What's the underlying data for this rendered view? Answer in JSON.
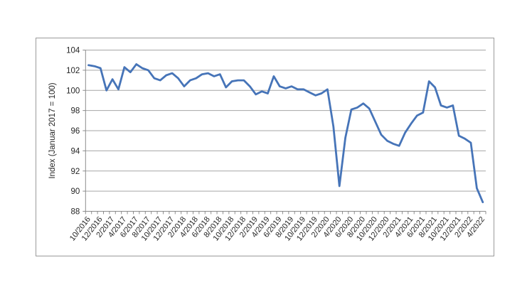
{
  "chart_data": {
    "type": "line",
    "title": "",
    "xlabel": "",
    "ylabel": "Index (Januar 2017 = 100)",
    "ylim": [
      88,
      104
    ],
    "ytick_step": 2,
    "grid": true,
    "legend": "none",
    "x_label_every": 2,
    "categories": [
      "10/2016",
      "11/2016",
      "12/2016",
      "1/2017",
      "2/2017",
      "3/2017",
      "4/2017",
      "5/2017",
      "6/2017",
      "7/2017",
      "8/2017",
      "9/2017",
      "10/2017",
      "11/2017",
      "12/2017",
      "1/2018",
      "2/2018",
      "3/2018",
      "4/2018",
      "5/2018",
      "6/2018",
      "7/2018",
      "8/2018",
      "9/2018",
      "10/2018",
      "11/2018",
      "12/2018",
      "1/2019",
      "2/2019",
      "3/2019",
      "4/2019",
      "5/2019",
      "6/2019",
      "7/2019",
      "8/2019",
      "9/2019",
      "10/2019",
      "11/2019",
      "12/2019",
      "1/2020",
      "2/2020",
      "3/2020",
      "4/2020",
      "5/2020",
      "6/2020",
      "7/2020",
      "8/2020",
      "9/2020",
      "10/2020",
      "11/2020",
      "12/2020",
      "1/2021",
      "2/2021",
      "3/2021",
      "4/2021",
      "5/2021",
      "6/2021",
      "7/2021",
      "8/2021",
      "9/2021",
      "10/2021",
      "11/2021",
      "12/2021",
      "1/2022",
      "2/2022",
      "3/2022",
      "4/2022"
    ],
    "series": [
      {
        "name": "Index",
        "values": [
          102.5,
          102.4,
          102.2,
          100.0,
          101.1,
          100.1,
          102.3,
          101.8,
          102.6,
          102.2,
          102.0,
          101.2,
          101.0,
          101.5,
          101.7,
          101.2,
          100.4,
          101.0,
          101.2,
          101.6,
          101.7,
          101.4,
          101.6,
          100.3,
          100.9,
          101.0,
          101.0,
          100.4,
          99.6,
          99.9,
          99.7,
          101.4,
          100.4,
          100.2,
          100.4,
          100.1,
          100.1,
          99.8,
          99.5,
          99.7,
          100.1,
          96.4,
          90.5,
          95.3,
          98.1,
          98.3,
          98.7,
          98.2,
          96.9,
          95.6,
          95.0,
          94.7,
          94.5,
          95.8,
          96.7,
          97.5,
          97.8,
          100.9,
          100.3,
          98.5,
          98.3,
          98.5,
          95.5,
          95.2,
          94.8,
          90.3,
          88.9
        ]
      }
    ],
    "colors": {
      "line": "#4674b8",
      "gridline": "#a6a6a6",
      "axis": "#8c8c8c",
      "tick_text": "#262626",
      "frame_border": "#9a9a9a",
      "background": "#ffffff"
    }
  }
}
